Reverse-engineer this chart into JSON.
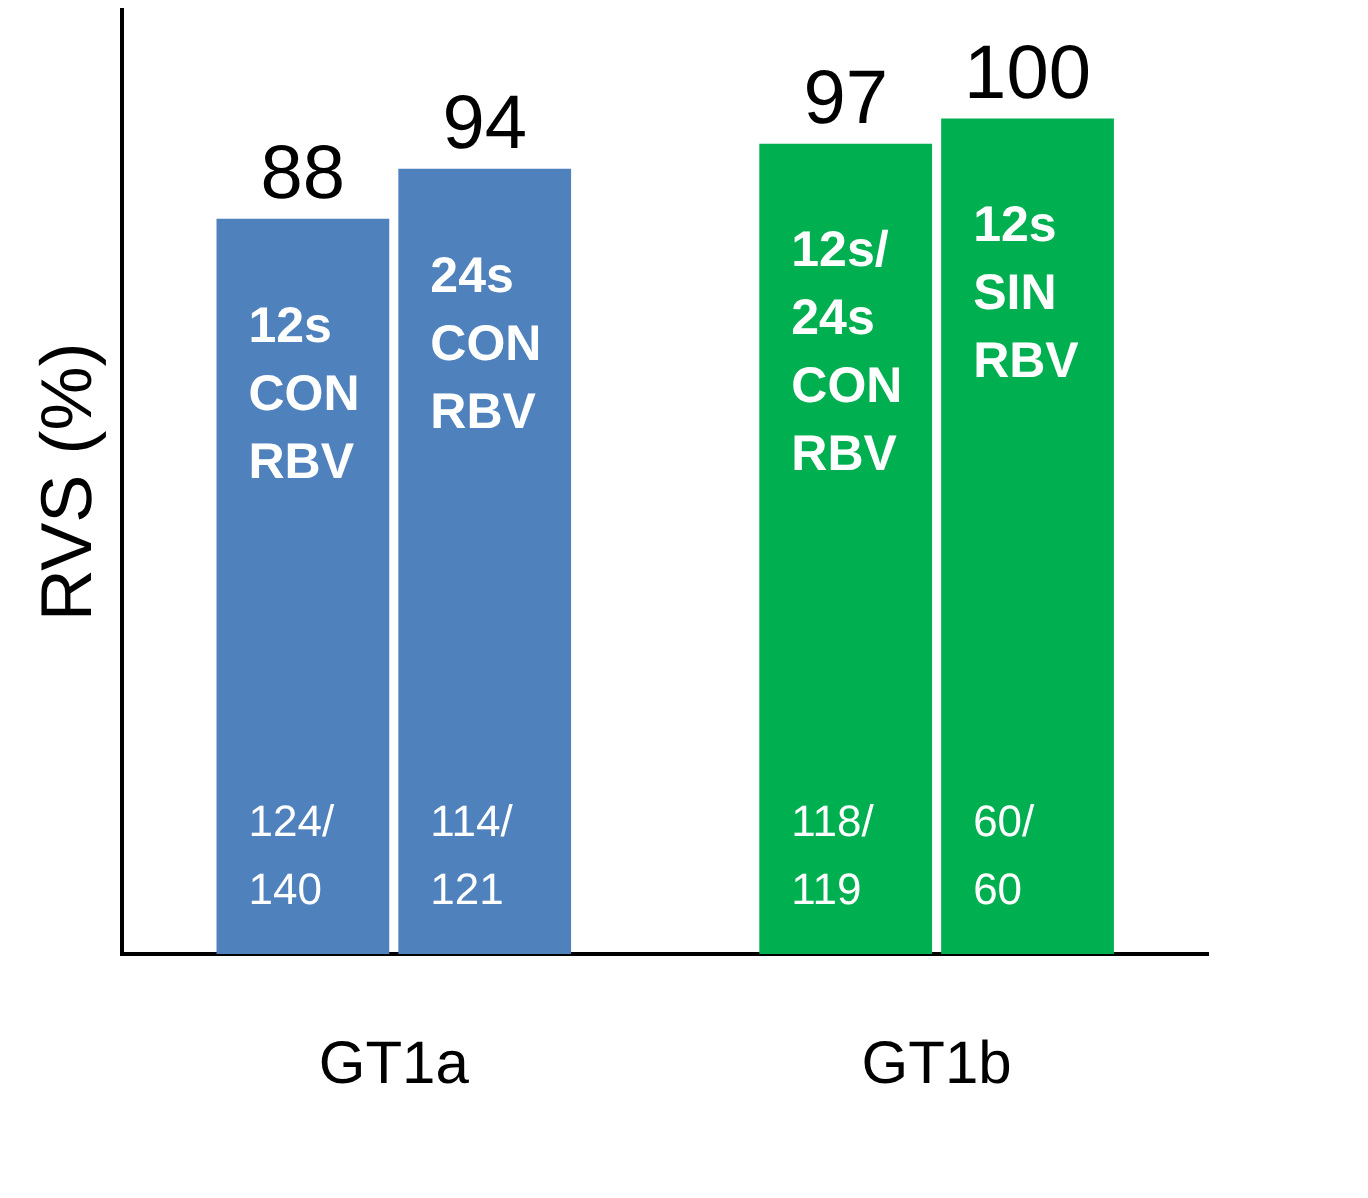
{
  "chart_data": {
    "type": "bar",
    "ylabel": "RVS (%)",
    "categories": [
      "GT1a",
      "GT1b"
    ],
    "series": [
      {
        "colors": [
          "#4f81bd",
          "#00b050"
        ],
        "values": [
          88,
          97
        ]
      },
      {
        "colors": [
          "#4f81bd",
          "#00b050"
        ],
        "values": [
          94,
          100
        ]
      }
    ],
    "ylim": [
      0,
      113
    ],
    "tick_labels": "x",
    "grid": false,
    "legend": false,
    "data_labels": true,
    "annotations": [
      "12s CON RBV",
      "124/140",
      "24s CON RBV",
      "114/121",
      "12s/24s CON RBV",
      "118/119",
      "12s SIN RBV",
      "60/60"
    ]
  }
}
